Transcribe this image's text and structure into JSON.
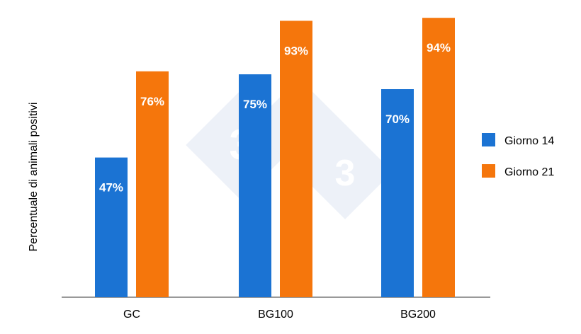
{
  "chart_data": {
    "type": "bar",
    "title": "",
    "xlabel": "",
    "ylabel": "Percentuale di animali positivi",
    "categories": [
      "GC",
      "BG100",
      "BG200"
    ],
    "series": [
      {
        "name": "Giorno 14",
        "color": "#1b73d3",
        "values": [
          47,
          75,
          70
        ],
        "labels": [
          "47%",
          "75%",
          "70%"
        ]
      },
      {
        "name": "Giorno 21",
        "color": "#f5760c",
        "values": [
          76,
          93,
          94
        ],
        "labels": [
          "76%",
          "93%",
          "94%"
        ]
      }
    ],
    "ylim": [
      0,
      100
    ],
    "grid": false,
    "legend": "right",
    "watermark": "333"
  }
}
